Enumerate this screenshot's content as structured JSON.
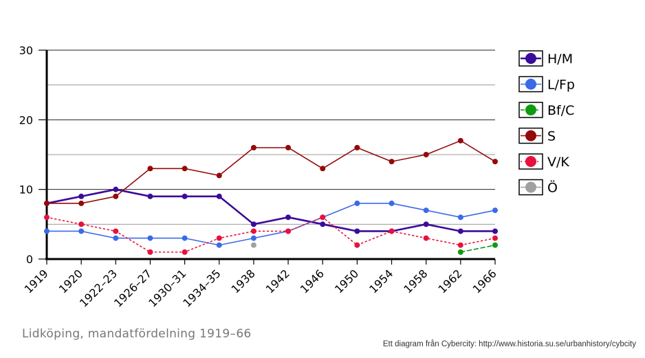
{
  "caption": "Lidköping, mandatfördelning 1919–66",
  "credit": "Ett diagram från Cybercity: http://www.historia.su.se/urbanhistory/cybcity",
  "chart_data": {
    "type": "line",
    "title": "",
    "xlabel": "",
    "ylabel": "",
    "categories": [
      "1919",
      "1920",
      "1922–23",
      "1926–27",
      "1930–31",
      "1934–35",
      "1938",
      "1942",
      "1946",
      "1950",
      "1954",
      "1958",
      "1962",
      "1966"
    ],
    "ylim": [
      0,
      30
    ],
    "yticks": [
      0,
      10,
      20,
      30
    ],
    "grid": true,
    "legend_position": "right",
    "series": [
      {
        "name": "H/M",
        "color": "#3b0b9a",
        "line_style": "solid",
        "stroke_width": 2.6,
        "values": [
          8,
          9,
          10,
          9,
          9,
          9,
          5,
          6,
          5,
          4,
          4,
          5,
          4,
          4
        ]
      },
      {
        "name": "L/Fp",
        "color": "#3a6ae8",
        "line_style": "solid",
        "stroke_width": 1.6,
        "values": [
          4,
          4,
          3,
          3,
          3,
          2,
          3,
          4,
          6,
          8,
          8,
          7,
          6,
          7
        ]
      },
      {
        "name": "Bf/C",
        "color": "#0e9b12",
        "line_style": "dashed",
        "stroke_width": 1.6,
        "values": [
          null,
          null,
          null,
          null,
          null,
          null,
          null,
          null,
          null,
          null,
          null,
          null,
          1,
          2
        ]
      },
      {
        "name": "S",
        "color": "#940a0a",
        "line_style": "solid",
        "stroke_width": 1.6,
        "values": [
          8,
          8,
          9,
          13,
          13,
          12,
          16,
          16,
          13,
          16,
          14,
          15,
          17,
          14
        ]
      },
      {
        "name": "V/K",
        "color": "#e8103c",
        "line_style": "dotted",
        "stroke_width": 1.6,
        "values": [
          6,
          5,
          4,
          1,
          1,
          3,
          4,
          4,
          6,
          2,
          4,
          3,
          2,
          3
        ]
      },
      {
        "name": "Ö",
        "color": "#a0a0a0",
        "line_style": "solid",
        "stroke_width": 1.6,
        "values": [
          null,
          null,
          null,
          null,
          null,
          null,
          2,
          null,
          null,
          null,
          null,
          null,
          null,
          null
        ]
      }
    ]
  }
}
